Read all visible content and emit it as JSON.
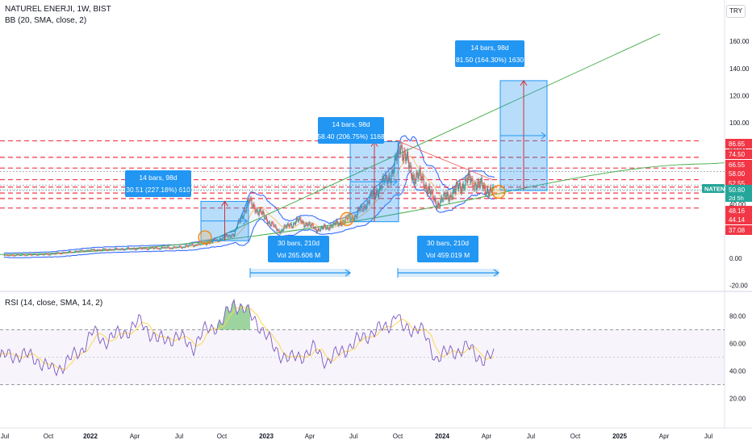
{
  "header": {
    "symbol_line": "NATUREL ENERJI, 1W, BIST",
    "bb_line": "BB (20, SMA, close, 2)",
    "rsi_line": "RSI (14, close, SMA, 14, 2)",
    "currency": "TRY"
  },
  "colors": {
    "up": "#26a69a",
    "down": "#ef5350",
    "bb": "#2962ff",
    "basis": "#ff9800",
    "trend": "#4caf50",
    "level": "#f23645",
    "box": "#2196f3",
    "rsi": "#7e57c2",
    "rsi_ma": "#ffd54f"
  },
  "chart_data": [
    {
      "type": "candlestick",
      "x_ticks": [
        "Jul",
        "Oct",
        "2022",
        "Apr",
        "Jul",
        "Oct",
        "2023",
        "Apr",
        "Jul",
        "Oct",
        "2024",
        "Apr",
        "Jul",
        "Oct",
        "2025",
        "Apr",
        "Jul"
      ],
      "ylim": [
        -20,
        175
      ],
      "y_ticks": [
        "160.00",
        "140.00",
        "120.00",
        "100.00",
        "80.00",
        "60.00",
        "40.00",
        "20.00",
        "0.00",
        "-20.00"
      ],
      "price_labels": [
        {
          "text": "86.65",
          "value": 86.65
        },
        {
          "text": "74.50",
          "value": 74.5
        },
        {
          "text": "66.55",
          "value": 66.55
        },
        {
          "text": "58.00",
          "value": 58.0
        },
        {
          "text": "52.55",
          "value": 52.55
        },
        {
          "text": "48.16",
          "value": 48.16
        },
        {
          "text": "44.14",
          "value": 44.14
        },
        {
          "text": "37.08",
          "value": 37.08
        }
      ],
      "ticker": {
        "name": "NATEN",
        "price": "50.60",
        "countdown": "2d 5h",
        "value": 50.6
      },
      "measurements": [
        {
          "bars": "14 bars, 98d",
          "change": "30.51 (227.18%) 610"
        },
        {
          "bars": "14 bars, 98d",
          "change": "58.40 (206.75%) 1168"
        },
        {
          "bars": "14 bars, 98d",
          "change": "81.50 (164.30%) 1630"
        }
      ],
      "ranges": [
        {
          "bars": "30 bars, 210d",
          "vol": "Vol 265.606 M"
        },
        {
          "bars": "30 bars, 210d",
          "vol": "Vol 459.019 M"
        }
      ]
    },
    {
      "type": "line",
      "name": "RSI",
      "ylim": [
        10,
        100
      ],
      "y_ticks": [
        "80.00",
        "60.00",
        "40.00",
        "20.00"
      ],
      "upper_band": 70,
      "lower_band": 30
    }
  ]
}
